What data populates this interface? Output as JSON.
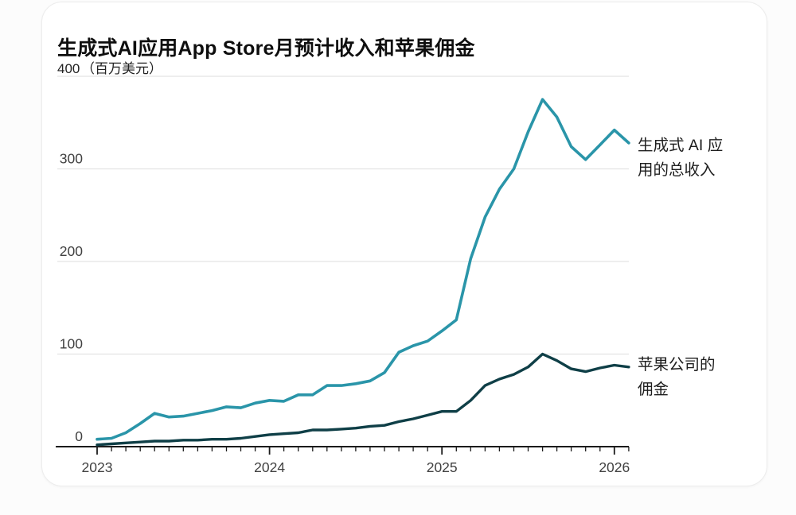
{
  "page": {
    "background": "#fcfcfc",
    "card_background": "#ffffff"
  },
  "header": {
    "title": "生成式AI应用App Store月预计收入和苹果佣金",
    "y_max_label": "400",
    "unit_label": "（百万美元）"
  },
  "colors": {
    "grid": "#e3e3e3",
    "axis": "#1b1b1b",
    "tick_label": "#414141",
    "revenue_line": "#2a95a9",
    "commission_line": "#0f3f47"
  },
  "chart_data": {
    "type": "line",
    "title": "生成式AI应用App Store月预计收入和苹果佣金",
    "ylabel": "百万美元",
    "x_unit": "month",
    "x_start": "2023-01",
    "x_end": "2026-02",
    "x_tick_years": [
      "2023",
      "2024",
      "2025",
      "2026"
    ],
    "y_ticks": [
      0,
      100,
      200,
      300,
      400
    ],
    "ylim": [
      0,
      400
    ],
    "grid": "horizontal",
    "legend_position": "right-annotations",
    "series": [
      {
        "name": "生成式 AI 应用的总收入",
        "color": "#2a95a9",
        "values": [
          8,
          9,
          15,
          25,
          36,
          32,
          33,
          36,
          39,
          43,
          42,
          47,
          50,
          49,
          56,
          56,
          66,
          66,
          68,
          71,
          80,
          102,
          109,
          114,
          125,
          137,
          203,
          248,
          278,
          300,
          340,
          375,
          356,
          324,
          310,
          326,
          342,
          328
        ]
      },
      {
        "name": "苹果公司的佣金",
        "color": "#0f3f47",
        "values": [
          2,
          3,
          4,
          5,
          6,
          6,
          7,
          7,
          8,
          8,
          9,
          11,
          13,
          14,
          15,
          18,
          18,
          19,
          20,
          22,
          23,
          27,
          30,
          34,
          38,
          38,
          50,
          66,
          73,
          78,
          86,
          100,
          93,
          84,
          81,
          85,
          88,
          86
        ]
      }
    ],
    "annotations": [
      {
        "text": "生成式 AI 应\n用的总收入",
        "series": 0
      },
      {
        "text": "苹果公司的\n佣金",
        "series": 1
      }
    ]
  }
}
